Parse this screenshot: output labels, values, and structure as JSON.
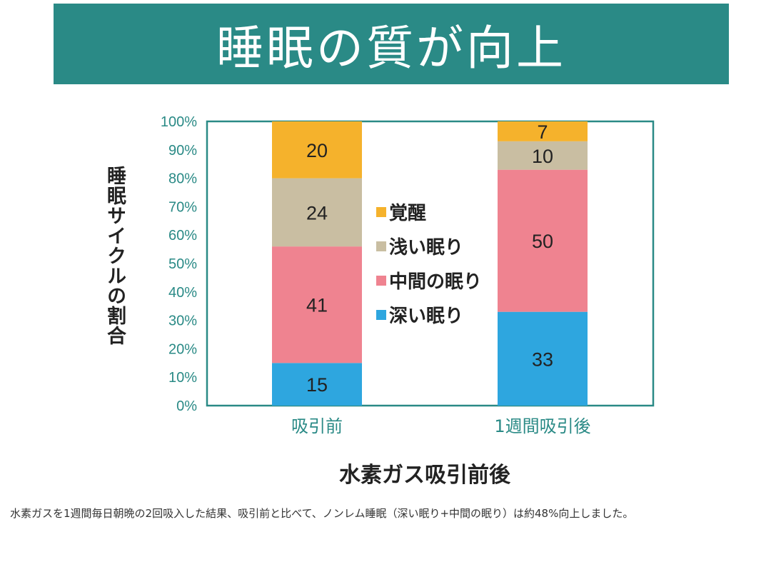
{
  "header": {
    "title": "睡眠の質が向上"
  },
  "chart_data": {
    "type": "bar",
    "stacked": true,
    "categories": [
      "吸引前",
      "1週間吸引後"
    ],
    "series": [
      {
        "name": "深い眠り",
        "values": [
          15,
          33
        ],
        "color": "#2ea6df"
      },
      {
        "name": "中間の眠り",
        "values": [
          41,
          50
        ],
        "color": "#ef8390"
      },
      {
        "name": "浅い眠り",
        "values": [
          24,
          10
        ],
        "color": "#c9bea2"
      },
      {
        "name": "覚醒",
        "values": [
          20,
          7
        ],
        "color": "#f5b22c"
      }
    ],
    "legend_order": [
      "覚醒",
      "浅い眠り",
      "中間の眠り",
      "深い眠り"
    ],
    "legend_position": "center",
    "xlabel": "水素ガス吸引前後",
    "ylabel": "睡眠サイクルの割合",
    "ylim": [
      0,
      100
    ],
    "yticks": [
      "0%",
      "10%",
      "20%",
      "30%",
      "40%",
      "50%",
      "60%",
      "70%",
      "80%",
      "90%",
      "100%"
    ],
    "grid": false,
    "axis_color": "#2a8a86"
  },
  "caption": "水素ガスを1週間毎日朝晩の2回吸入した結果、吸引前と比べて、ノンレム睡眠（深い眠り+中間の眠り）は約48%向上しました。"
}
